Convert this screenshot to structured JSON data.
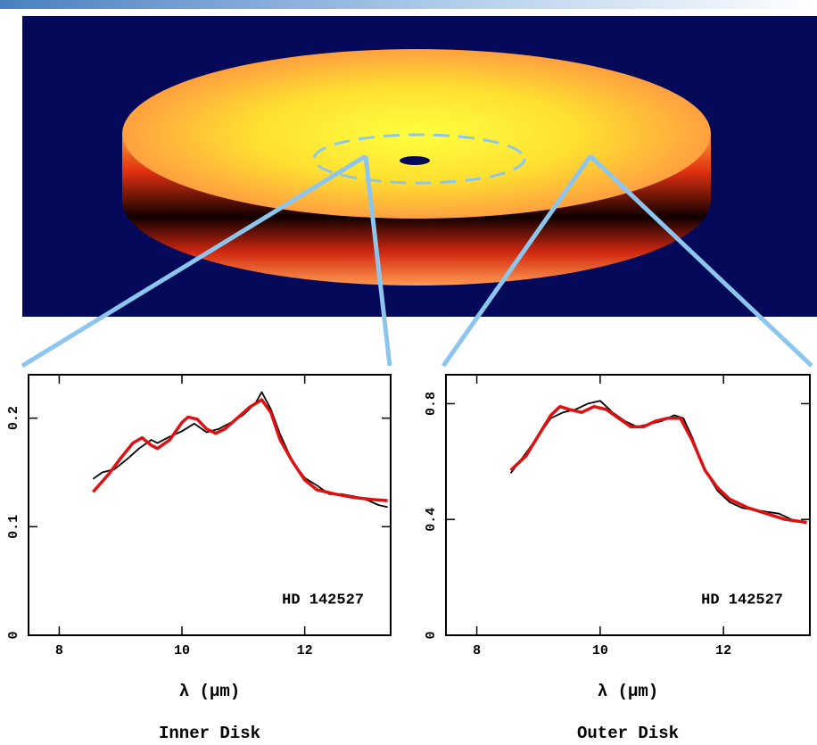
{
  "chart_data": [
    {
      "type": "line",
      "caption": "Inner Disk",
      "xlabel": "λ (μm)",
      "annotation": "HD 142527",
      "xlim": [
        7.5,
        13.4
      ],
      "ylim": [
        0,
        0.24
      ],
      "xticks": [
        8,
        10,
        12
      ],
      "yticks": [
        0,
        0.1,
        0.2
      ],
      "series": [
        {
          "color": "#000000",
          "x": [
            8.55,
            8.7,
            8.9,
            9.1,
            9.3,
            9.5,
            9.6,
            9.8,
            10.0,
            10.2,
            10.4,
            10.6,
            10.8,
            11.0,
            11.2,
            11.3,
            11.45,
            11.6,
            11.8,
            12.0,
            12.2,
            12.4,
            12.6,
            12.8,
            13.0,
            13.2,
            13.35
          ],
          "values": [
            0.144,
            0.15,
            0.153,
            0.162,
            0.172,
            0.18,
            0.177,
            0.183,
            0.188,
            0.195,
            0.187,
            0.19,
            0.196,
            0.203,
            0.214,
            0.224,
            0.208,
            0.185,
            0.16,
            0.145,
            0.138,
            0.13,
            0.13,
            0.128,
            0.125,
            0.12,
            0.118
          ]
        },
        {
          "color": "#dd1111",
          "x": [
            8.55,
            8.8,
            9.0,
            9.2,
            9.35,
            9.5,
            9.6,
            9.8,
            10.0,
            10.1,
            10.25,
            10.4,
            10.55,
            10.7,
            10.9,
            11.1,
            11.3,
            11.45,
            11.6,
            11.8,
            12.0,
            12.2,
            12.5,
            12.8,
            13.1,
            13.35
          ],
          "values": [
            0.132,
            0.148,
            0.163,
            0.177,
            0.182,
            0.175,
            0.172,
            0.18,
            0.196,
            0.201,
            0.199,
            0.19,
            0.186,
            0.19,
            0.2,
            0.21,
            0.217,
            0.205,
            0.18,
            0.16,
            0.143,
            0.134,
            0.13,
            0.127,
            0.125,
            0.124
          ]
        }
      ]
    },
    {
      "type": "line",
      "caption": "Outer Disk",
      "xlabel": "λ (μm)",
      "annotation": "HD 142527",
      "xlim": [
        7.5,
        13.4
      ],
      "ylim": [
        0,
        0.9
      ],
      "xticks": [
        8,
        10,
        12
      ],
      "yticks": [
        0,
        0.4,
        0.8
      ],
      "series": [
        {
          "color": "#000000",
          "x": [
            8.55,
            8.8,
            9.0,
            9.2,
            9.4,
            9.6,
            9.8,
            10.0,
            10.2,
            10.4,
            10.6,
            10.8,
            11.0,
            11.2,
            11.35,
            11.5,
            11.7,
            11.9,
            12.1,
            12.3,
            12.6,
            12.9,
            13.1,
            13.35
          ],
          "values": [
            0.56,
            0.63,
            0.69,
            0.75,
            0.77,
            0.78,
            0.8,
            0.81,
            0.77,
            0.74,
            0.72,
            0.73,
            0.74,
            0.76,
            0.75,
            0.68,
            0.57,
            0.5,
            0.46,
            0.44,
            0.43,
            0.42,
            0.4,
            0.39
          ]
        },
        {
          "color": "#dd1111",
          "x": [
            8.55,
            8.8,
            9.0,
            9.2,
            9.35,
            9.5,
            9.7,
            9.9,
            10.1,
            10.3,
            10.5,
            10.7,
            10.9,
            11.1,
            11.3,
            11.5,
            11.7,
            11.9,
            12.1,
            12.4,
            12.7,
            13.0,
            13.35
          ],
          "values": [
            0.57,
            0.62,
            0.69,
            0.76,
            0.79,
            0.78,
            0.77,
            0.79,
            0.78,
            0.75,
            0.72,
            0.72,
            0.74,
            0.75,
            0.75,
            0.67,
            0.57,
            0.51,
            0.47,
            0.44,
            0.42,
            0.4,
            0.39
          ]
        }
      ]
    }
  ]
}
